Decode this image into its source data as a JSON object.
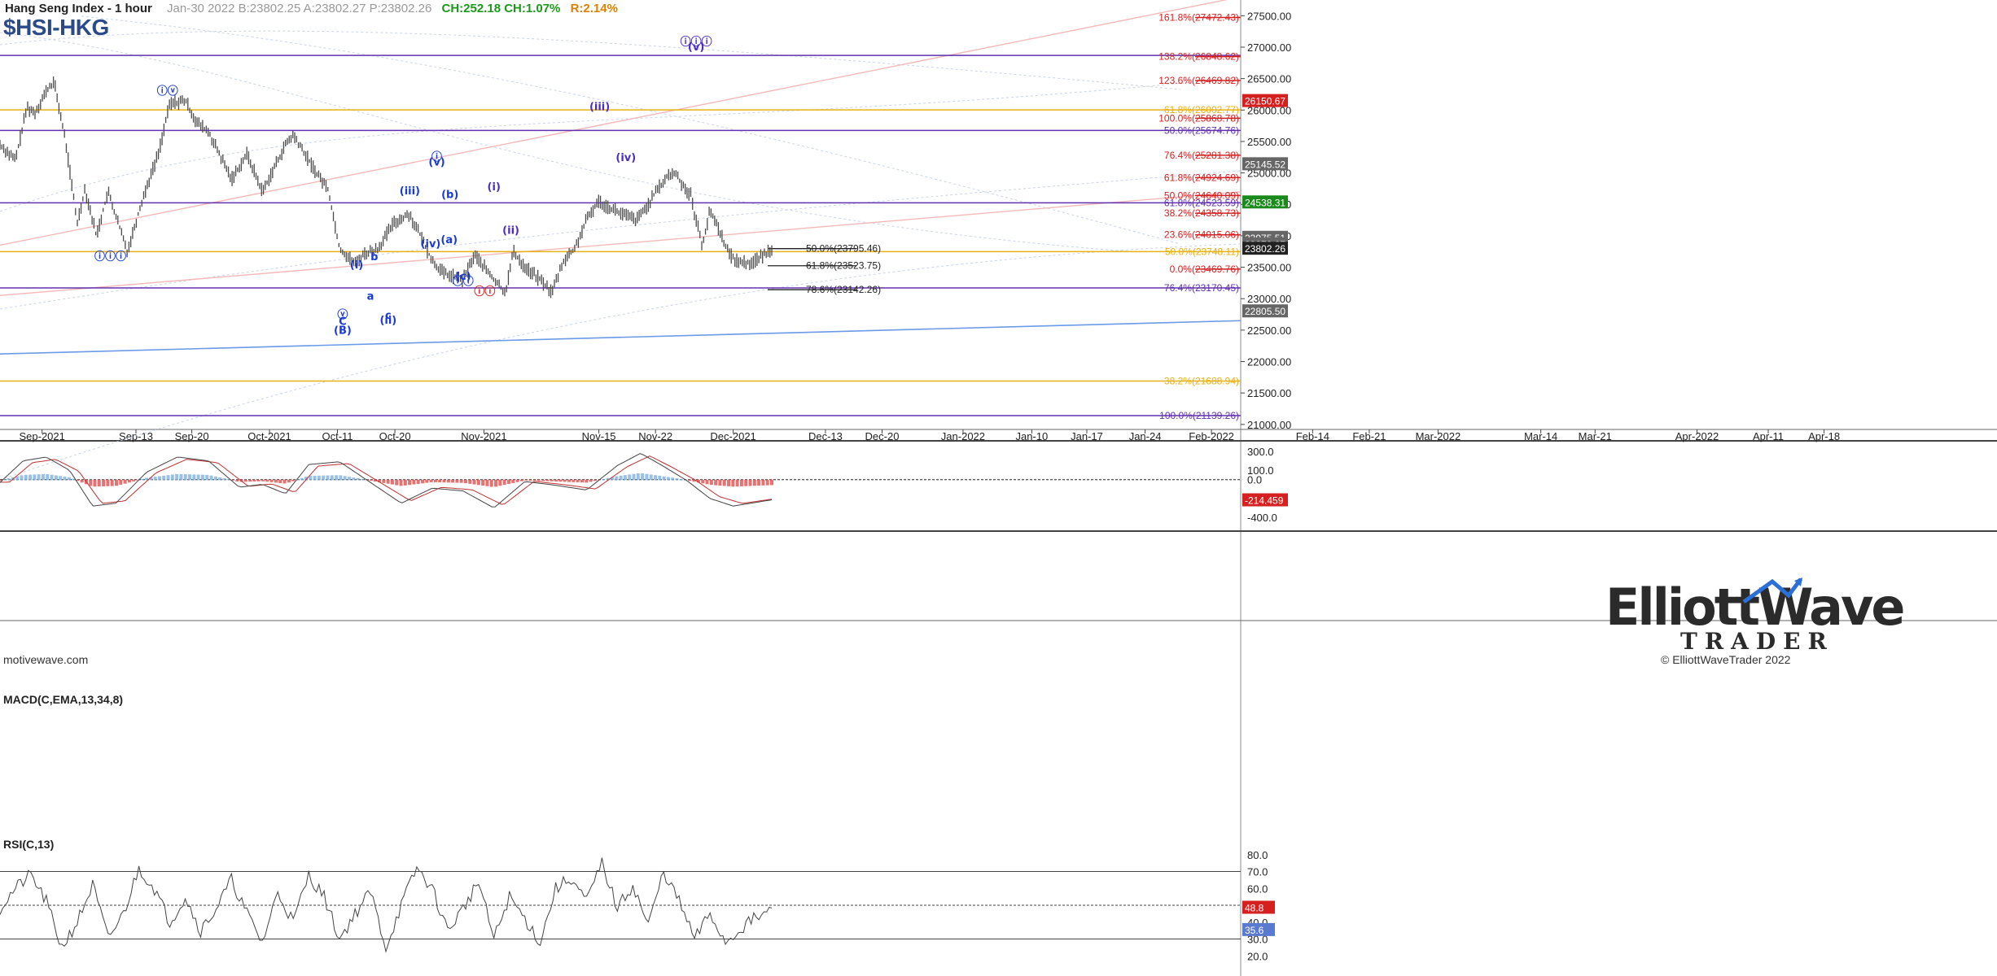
{
  "header": {
    "name": "Hang Seng Index - 1 hour",
    "quote": "Jan-30 2022  B:23802.25  A:23802.27  P:23802.26",
    "change": "CH:252.18  CH:1.07%",
    "range": "R:2.14%",
    "symbol": "$HSI-HKG"
  },
  "footer": {
    "site": "motivewave.com",
    "copyright": "© ElliottWaveTrader 2022",
    "logo_line1": "ElliottWave",
    "logo_line2": "TRADER"
  },
  "colors": {
    "grid": "#c8c8c8",
    "fib_red": "#d62020",
    "purple": "#6030b0",
    "gold": "#e8b010",
    "wave_blue": "#1a3ad8",
    "trend_blue": "#6a9ae8",
    "macd_up": "#7fb2e0",
    "macd_down": "#e05050"
  },
  "chart_data": [
    {
      "type": "line",
      "title": "Hang Seng Index - 1 hour",
      "ylim": [
        21000,
        27650
      ],
      "y_ticks": [
        "27500.00",
        "27000.00",
        "26500.00",
        "26000.00",
        "25500.00",
        "25000.00",
        "24500.00",
        "24000.00",
        "23500.00",
        "23000.00",
        "22500.00",
        "22000.00",
        "21500.00",
        "21000.00"
      ],
      "x_ticks": [
        "Sep-2021",
        "Sep-13",
        "Sep-20",
        "Oct-2021",
        "Oct-11",
        "Oct-20",
        "Nov-2021",
        "Nov-15",
        "Nov-22",
        "Dec-2021",
        "Dec-13",
        "Dec-20",
        "Jan-2022",
        "Jan-10",
        "Jan-17",
        "Jan-24",
        "Feb-2022",
        "Feb-14",
        "Feb-21",
        "Mar-2022",
        "Mar-14",
        "Mar-21",
        "Apr-2022",
        "Apr-11",
        "Apr-18"
      ],
      "price_path": [
        [
          0,
          25450
        ],
        [
          0.02,
          25200
        ],
        [
          0.035,
          26050
        ],
        [
          0.045,
          25950
        ],
        [
          0.06,
          26300
        ],
        [
          0.07,
          26450
        ],
        [
          0.085,
          25500
        ],
        [
          0.1,
          24200
        ],
        [
          0.11,
          24750
        ],
        [
          0.125,
          24000
        ],
        [
          0.14,
          24700
        ],
        [
          0.165,
          23750
        ],
        [
          0.185,
          24600
        ],
        [
          0.205,
          25300
        ],
        [
          0.22,
          26100
        ],
        [
          0.24,
          26150
        ],
        [
          0.255,
          25800
        ],
        [
          0.27,
          25650
        ],
        [
          0.3,
          24900
        ],
        [
          0.32,
          25300
        ],
        [
          0.34,
          24700
        ],
        [
          0.37,
          25450
        ],
        [
          0.38,
          25600
        ],
        [
          0.395,
          25300
        ],
        [
          0.41,
          25000
        ],
        [
          0.425,
          24750
        ],
        [
          0.44,
          23800
        ],
        [
          0.46,
          23550
        ],
        [
          0.47,
          23700
        ],
        [
          0.49,
          23800
        ],
        [
          0.51,
          24200
        ],
        [
          0.53,
          24350
        ],
        [
          0.545,
          24000
        ],
        [
          0.56,
          23600
        ],
        [
          0.575,
          23400
        ],
        [
          0.6,
          23300
        ],
        [
          0.615,
          23700
        ],
        [
          0.64,
          23300
        ],
        [
          0.655,
          23100
        ],
        [
          0.665,
          23750
        ],
        [
          0.68,
          23500
        ],
        [
          0.7,
          23300
        ],
        [
          0.715,
          23100
        ],
        [
          0.73,
          23600
        ],
        [
          0.745,
          23800
        ],
        [
          0.76,
          24250
        ],
        [
          0.775,
          24550
        ],
        [
          0.79,
          24450
        ],
        [
          0.805,
          24350
        ],
        [
          0.825,
          24250
        ],
        [
          0.84,
          24500
        ],
        [
          0.85,
          24700
        ],
        [
          0.865,
          24950
        ],
        [
          0.875,
          25000
        ],
        [
          0.885,
          24800
        ],
        [
          0.895,
          24650
        ],
        [
          0.9,
          24350
        ],
        [
          0.91,
          23850
        ],
        [
          0.92,
          24400
        ],
        [
          0.93,
          24150
        ],
        [
          0.945,
          23700
        ],
        [
          0.955,
          23600
        ],
        [
          0.97,
          23560
        ],
        [
          0.985,
          23650
        ],
        [
          1,
          23802
        ]
      ],
      "fib_levels": [
        {
          "label": "161.8%(27472.43)",
          "value": 27472.43
        },
        {
          "label": "138.2%(26848.62)",
          "value": 26848.62
        },
        {
          "label": "123.6%(26469.82)",
          "value": 26469.82
        },
        {
          "label": "100.0%(25868.78)",
          "value": 25868.78
        },
        {
          "label": "76.4%(25281.38)",
          "value": 25281.38
        },
        {
          "label": "61.8%(24924.69)",
          "value": 24924.69
        },
        {
          "label": "50.0%(24640.09)",
          "value": 24640.09
        },
        {
          "label": "38.2%(24358.73)",
          "value": 24358.73
        },
        {
          "label": "23.6%(24015.06)",
          "value": 24015.06
        },
        {
          "label": "0.0%(23469.76)",
          "value": 23469.76
        }
      ],
      "purple_levels": [
        {
          "label": "",
          "value": 26868
        },
        {
          "label": "50.0%(25674.76)",
          "value": 25674.76
        },
        {
          "label": "61.8%(24523.59)",
          "value": 24523.59
        },
        {
          "label": "76.4%(23170.45)",
          "value": 23170.45
        },
        {
          "label": "100.0%(21139.26)",
          "value": 21139.26
        }
      ],
      "gold_levels": [
        {
          "label": "61.8%(26002.77)",
          "value": 26002.77
        },
        {
          "label": "50.0%(23748.11)",
          "value": 23748.11
        },
        {
          "label": "38.2%(21688.94)",
          "value": 21688.94
        }
      ],
      "black_levels": [
        {
          "label": "50.0%(23795.46)",
          "value": 23795.46
        },
        {
          "label": "61.8%(23523.75)",
          "value": 23523.75
        },
        {
          "label": "78.6%(23142.26)",
          "value": 23142.26
        }
      ],
      "price_tags": [
        {
          "label": "26150.67",
          "value": 26150.67,
          "color": "#d62020"
        },
        {
          "label": "25145.52",
          "value": 25145.52,
          "color": "#666666"
        },
        {
          "label": "24538.31",
          "value": 24538.31,
          "color": "#1a8a1a"
        },
        {
          "label": "23975.51",
          "value": 23975.51,
          "color": "#666666"
        },
        {
          "label": "23870.27",
          "value": 23870.27,
          "color": "#666666"
        },
        {
          "label": "23802.26",
          "value": 23802.26,
          "color": "#222222"
        },
        {
          "label": "22805.50",
          "value": 22805.5,
          "color": "#666666"
        }
      ],
      "wave_labels": [
        {
          "t": "ⓘⓘⓘ",
          "x": 0.143,
          "y": 23620,
          "c": "#1a3ad8"
        },
        {
          "t": "ⓘⓥ",
          "x": 0.217,
          "y": 26250,
          "c": "#1a3ad8"
        },
        {
          "t": "ⓥ",
          "x": 0.444,
          "y": 22690,
          "c": "#1a3ad8"
        },
        {
          "t": "C",
          "x": 0.444,
          "y": 22580,
          "c": "#1a3ad8"
        },
        {
          "t": "(B)",
          "x": 0.444,
          "y": 22440,
          "c": "#1a3ad8"
        },
        {
          "t": "(i)",
          "x": 0.462,
          "y": 23480,
          "c": "#1a3ad8"
        },
        {
          "t": "a",
          "x": 0.48,
          "y": 22980,
          "c": "#1a3ad8"
        },
        {
          "t": "b",
          "x": 0.485,
          "y": 23610,
          "c": "#1a3ad8"
        },
        {
          "t": "c",
          "x": 0.503,
          "y": 22680,
          "c": "#1a3ad8"
        },
        {
          "t": "(ii)",
          "x": 0.503,
          "y": 22600,
          "c": "#1a3ad8"
        },
        {
          "t": "(iii)",
          "x": 0.531,
          "y": 24660,
          "c": "#1a3ad8"
        },
        {
          "t": "(iv)",
          "x": 0.558,
          "y": 23820,
          "c": "#1a3ad8"
        },
        {
          "t": "ⓘ",
          "x": 0.566,
          "y": 25200,
          "c": "#1a3ad8"
        },
        {
          "t": "(v)",
          "x": 0.566,
          "y": 25120,
          "c": "#1a3ad8"
        },
        {
          "t": "(b)",
          "x": 0.583,
          "y": 24600,
          "c": "#1a3ad8"
        },
        {
          "t": "(a)",
          "x": 0.582,
          "y": 23880,
          "c": "#1a3ad8"
        },
        {
          "t": "(c)",
          "x": 0.6,
          "y": 23300,
          "c": "#1a3ad8"
        },
        {
          "t": "ⓘⓘ",
          "x": 0.6,
          "y": 23220,
          "c": "#1a3ad8"
        },
        {
          "t": "ⓘⓘ",
          "x": 0.628,
          "y": 23060,
          "c": "#d62020"
        },
        {
          "t": "(i)",
          "x": 0.64,
          "y": 24720,
          "c": "#4a2cc8"
        },
        {
          "t": "(ii)",
          "x": 0.662,
          "y": 24030,
          "c": "#4a2cc8"
        },
        {
          "t": "(iii)",
          "x": 0.777,
          "y": 26000,
          "c": "#4a2cc8"
        },
        {
          "t": "(iv)",
          "x": 0.811,
          "y": 25190,
          "c": "#4a2cc8"
        },
        {
          "t": "ⓘⓘⓘ",
          "x": 0.902,
          "y": 27030,
          "c": "#4a2cc8"
        },
        {
          "t": "(v)",
          "x": 0.902,
          "y": 26950,
          "c": "#4a2cc8"
        }
      ]
    },
    {
      "type": "bar",
      "title": "MACD(C,EMA,13,34,8)",
      "ylim": [
        -520,
        360
      ],
      "y_ticks": [
        "300.0",
        "100.0",
        "0.0",
        "-400.0"
      ],
      "last_value": "-214.459",
      "macd_path": [
        [
          0,
          -30
        ],
        [
          0.03,
          200
        ],
        [
          0.06,
          240
        ],
        [
          0.09,
          100
        ],
        [
          0.12,
          -280
        ],
        [
          0.15,
          -250
        ],
        [
          0.19,
          80
        ],
        [
          0.23,
          240
        ],
        [
          0.27,
          200
        ],
        [
          0.31,
          -80
        ],
        [
          0.34,
          -50
        ],
        [
          0.37,
          -150
        ],
        [
          0.4,
          160
        ],
        [
          0.44,
          190
        ],
        [
          0.48,
          -30
        ],
        [
          0.52,
          -250
        ],
        [
          0.56,
          -90
        ],
        [
          0.6,
          -120
        ],
        [
          0.64,
          -300
        ],
        [
          0.68,
          -20
        ],
        [
          0.72,
          -60
        ],
        [
          0.76,
          -110
        ],
        [
          0.8,
          150
        ],
        [
          0.83,
          280
        ],
        [
          0.86,
          140
        ],
        [
          0.89,
          -10
        ],
        [
          0.92,
          -200
        ],
        [
          0.95,
          -280
        ],
        [
          1,
          -214
        ]
      ]
    },
    {
      "type": "line",
      "title": "RSI(C,13)",
      "ylim": [
        10,
        90
      ],
      "y_ticks": [
        "80.0",
        "70.0",
        "60.0",
        "50.0",
        "40.0",
        "30.0",
        "20.0"
      ],
      "last_values": [
        "48.8",
        "35.6"
      ],
      "rsi_path": [
        [
          0,
          48
        ],
        [
          0.02,
          60
        ],
        [
          0.04,
          68
        ],
        [
          0.06,
          52
        ],
        [
          0.08,
          25
        ],
        [
          0.1,
          40
        ],
        [
          0.12,
          62
        ],
        [
          0.14,
          30
        ],
        [
          0.16,
          45
        ],
        [
          0.18,
          72
        ],
        [
          0.2,
          60
        ],
        [
          0.22,
          40
        ],
        [
          0.24,
          55
        ],
        [
          0.26,
          35
        ],
        [
          0.28,
          48
        ],
        [
          0.3,
          65
        ],
        [
          0.32,
          45
        ],
        [
          0.34,
          28
        ],
        [
          0.36,
          58
        ],
        [
          0.38,
          40
        ],
        [
          0.4,
          68
        ],
        [
          0.42,
          55
        ],
        [
          0.44,
          30
        ],
        [
          0.46,
          45
        ],
        [
          0.48,
          58
        ],
        [
          0.5,
          25
        ],
        [
          0.52,
          50
        ],
        [
          0.54,
          72
        ],
        [
          0.56,
          60
        ],
        [
          0.58,
          35
        ],
        [
          0.6,
          48
        ],
        [
          0.62,
          64
        ],
        [
          0.64,
          30
        ],
        [
          0.66,
          55
        ],
        [
          0.68,
          42
        ],
        [
          0.7,
          28
        ],
        [
          0.72,
          60
        ],
        [
          0.74,
          66
        ],
        [
          0.76,
          52
        ],
        [
          0.78,
          75
        ],
        [
          0.8,
          48
        ],
        [
          0.82,
          62
        ],
        [
          0.84,
          38
        ],
        [
          0.86,
          70
        ],
        [
          0.88,
          52
        ],
        [
          0.9,
          30
        ],
        [
          0.92,
          45
        ],
        [
          0.94,
          28
        ],
        [
          0.97,
          40
        ],
        [
          1,
          47
        ]
      ]
    }
  ]
}
